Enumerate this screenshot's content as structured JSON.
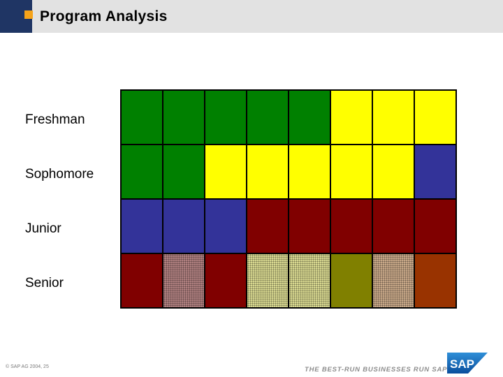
{
  "header": {
    "title": "Program Analysis"
  },
  "rows": [
    {
      "label": "Freshman",
      "cells": [
        "green",
        "green",
        "green",
        "green",
        "green",
        "yellow",
        "yellow",
        "yellow"
      ]
    },
    {
      "label": "Sophomore",
      "cells": [
        "green",
        "green",
        "yellow",
        "yellow",
        "yellow",
        "yellow",
        "yellow",
        "blue"
      ]
    },
    {
      "label": "Junior",
      "cells": [
        "blue",
        "blue",
        "blue",
        "maroon",
        "maroon",
        "maroon",
        "maroon",
        "maroon"
      ]
    },
    {
      "label": "Senior",
      "cells": [
        "maroon",
        "maroon-dotted",
        "maroon",
        "yellow-dotted",
        "yellow-dotted",
        "olive",
        "tan-dotted",
        "rust"
      ]
    }
  ],
  "colors": {
    "green": "#008000",
    "yellow": "#ffff00",
    "blue": "#333399",
    "maroon": "#800000",
    "olive": "#808000",
    "rust": "#993300",
    "maroon-dotted": "#b08080",
    "yellow-dotted": "#d8d890",
    "tan-dotted": "#c8a888"
  },
  "footer": {
    "copyright": "© SAP AG 2004, 25",
    "tagline": "THE BEST-RUN BUSINESSES RUN SAP",
    "logo_text": "SAP"
  }
}
